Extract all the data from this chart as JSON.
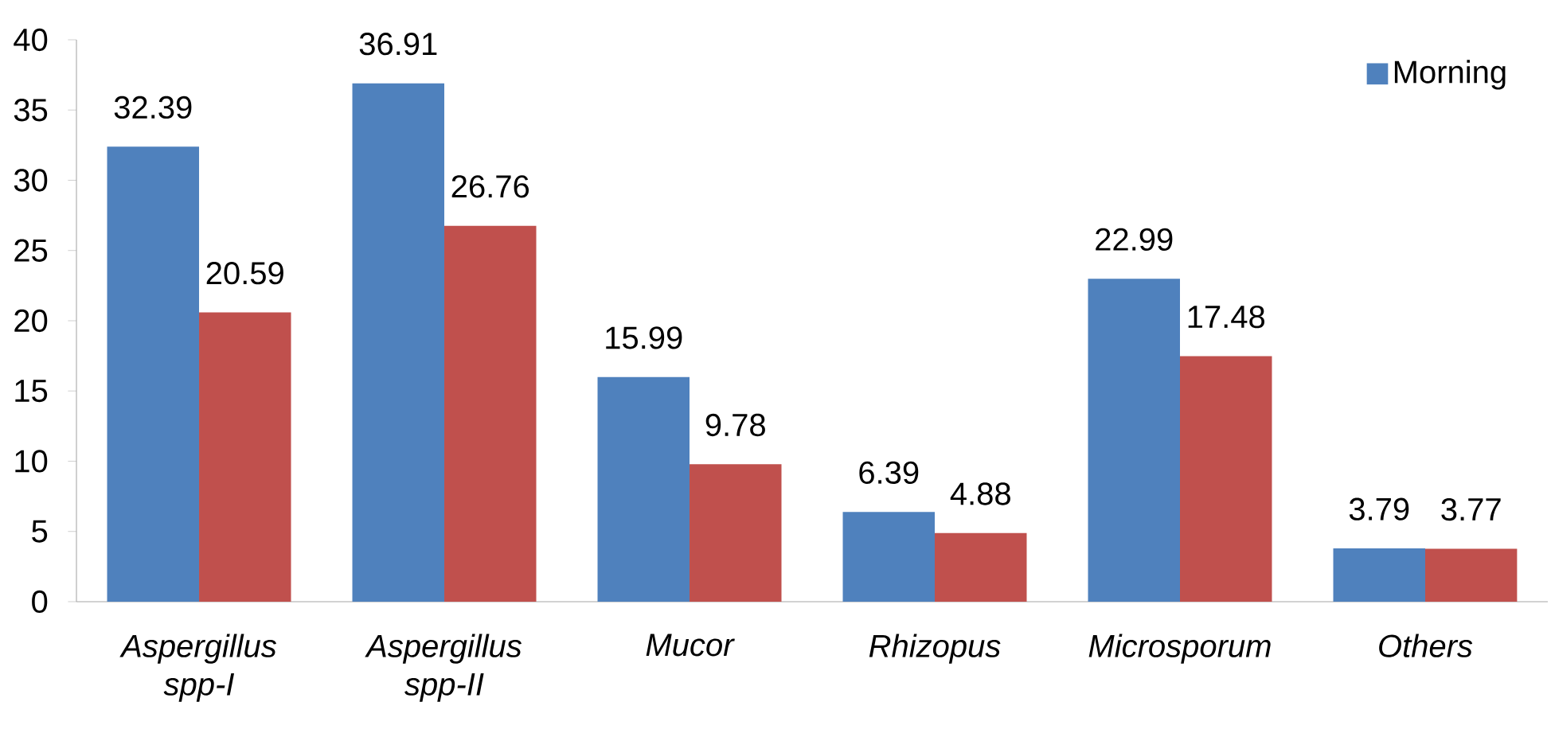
{
  "chart_data": {
    "type": "bar",
    "categories": [
      "Aspergillus spp-I",
      "Aspergillus spp-II",
      "Mucor",
      "Rhizopus",
      "Microsporum",
      "Others"
    ],
    "series": [
      {
        "name": "Morning",
        "color": "#4f81bd",
        "values": [
          32.39,
          36.91,
          15.99,
          6.39,
          22.99,
          3.79
        ]
      },
      {
        "color": "#c0504d",
        "values": [
          20.59,
          26.76,
          9.78,
          4.88,
          17.48,
          3.77
        ]
      }
    ],
    "ylim": [
      0,
      40
    ],
    "yticks": [
      0,
      5,
      10,
      15,
      20,
      25,
      30,
      35,
      40
    ],
    "data_labels": true,
    "legend": "top right",
    "grid": false
  }
}
